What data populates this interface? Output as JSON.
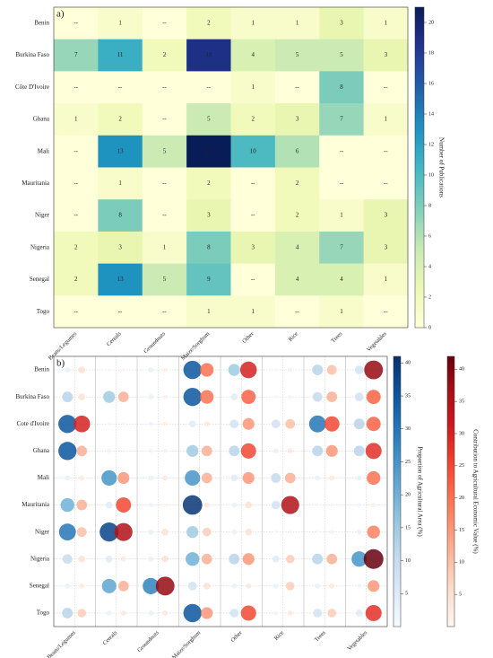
{
  "chart_data": [
    {
      "type": "heatmap",
      "panel_label": "a)",
      "rows": [
        "Benin",
        "Burkina Faso",
        "Côte D'Ivoire",
        "Ghana",
        "Mali",
        "Mauritania",
        "Niger",
        "Nigeria",
        "Senegal",
        "Togo"
      ],
      "columns": [
        "Beans/Legumes",
        "Cereals",
        "Groundnuts",
        "Maize/Sorghum",
        "Other",
        "Rice",
        "Trees",
        "Vegetables"
      ],
      "values": [
        [
          null,
          1,
          null,
          2,
          1,
          1,
          3,
          1
        ],
        [
          7,
          11,
          2,
          19,
          4,
          5,
          5,
          3
        ],
        [
          null,
          null,
          null,
          null,
          1,
          null,
          8,
          null
        ],
        [
          1,
          2,
          null,
          5,
          2,
          3,
          7,
          1
        ],
        [
          null,
          13,
          5,
          21,
          10,
          6,
          null,
          null
        ],
        [
          null,
          1,
          null,
          2,
          null,
          2,
          null,
          null
        ],
        [
          null,
          8,
          null,
          3,
          null,
          2,
          1,
          3
        ],
        [
          2,
          3,
          1,
          8,
          3,
          4,
          7,
          3
        ],
        [
          2,
          13,
          5,
          9,
          null,
          4,
          4,
          1
        ],
        [
          null,
          null,
          null,
          1,
          1,
          null,
          1,
          null
        ]
      ],
      "missing_label": "--",
      "colormap": "YlGnBu",
      "colorbar_label": "Number of Publications",
      "clim": [
        0,
        21
      ],
      "cticks": [
        0,
        2,
        4,
        6,
        8,
        10,
        12,
        14,
        16,
        18,
        20
      ]
    },
    {
      "type": "bubble",
      "panel_label": "b)",
      "rows": [
        "Benin",
        "Burkina Faso",
        "Cote d'Ivoire",
        "Ghana",
        "Mali",
        "Mauritania",
        "Niger",
        "Nigeria",
        "Senegal",
        "Togo"
      ],
      "categories": [
        "Beans/Legumes",
        "Cereals",
        "Groundnuts",
        "Maize/Sorghum",
        "Other",
        "Rice",
        "Trees",
        "Vegetables"
      ],
      "grid": true,
      "series": [
        {
          "name": "Proportion of Agricultural Area (%)",
          "colormap": "Blues",
          "clim": [
            0,
            41
          ],
          "cticks": [
            5,
            10,
            15,
            20,
            25,
            30,
            35,
            40
          ],
          "values": [
            [
              3,
              1,
              3,
              35,
              15,
              1,
              12,
              8
            ],
            [
              12,
              15,
              3,
              35,
              5,
              1,
              10,
              8
            ],
            [
              35,
              1,
              2,
              5,
              8,
              8,
              30,
              12
            ],
            [
              35,
              2,
              2,
              15,
              12,
              3,
              12,
              12
            ],
            [
              3,
              25,
              3,
              25,
              5,
              10,
              3,
              3
            ],
            [
              20,
              5,
              2,
              40,
              3,
              8,
              1,
              2
            ],
            [
              30,
              38,
              3,
              15,
              3,
              1,
              1,
              3
            ],
            [
              10,
              5,
              3,
              20,
              12,
              5,
              12,
              25
            ],
            [
              3,
              22,
              28,
              8,
              3,
              3,
              3,
              2
            ],
            [
              12,
              3,
              3,
              35,
              8,
              2,
              8,
              5
            ]
          ]
        },
        {
          "name": "Contribution to Agricultural Economic Value (%)",
          "colormap": "Reds",
          "clim": [
            0,
            42
          ],
          "cticks": [
            5,
            10,
            15,
            20,
            25,
            30,
            35,
            40
          ],
          "values": [
            [
              5,
              1,
              2,
              20,
              30,
              2,
              10,
              38
            ],
            [
              5,
              12,
              2,
              20,
              22,
              2,
              12,
              22
            ],
            [
              30,
              1,
              2,
              3,
              15,
              10,
              25,
              22
            ],
            [
              12,
              1,
              2,
              12,
              25,
              3,
              15,
              28
            ],
            [
              3,
              15,
              3,
              12,
              15,
              12,
              3,
              20
            ],
            [
              12,
              25,
              1,
              3,
              5,
              35,
              1,
              2
            ],
            [
              10,
              35,
              5,
              8,
              5,
              1,
              2,
              18
            ],
            [
              5,
              3,
              5,
              12,
              15,
              8,
              12,
              42
            ],
            [
              3,
              12,
              38,
              5,
              3,
              8,
              3,
              15
            ],
            [
              8,
              3,
              3,
              15,
              25,
              3,
              8,
              28
            ]
          ]
        }
      ]
    }
  ]
}
